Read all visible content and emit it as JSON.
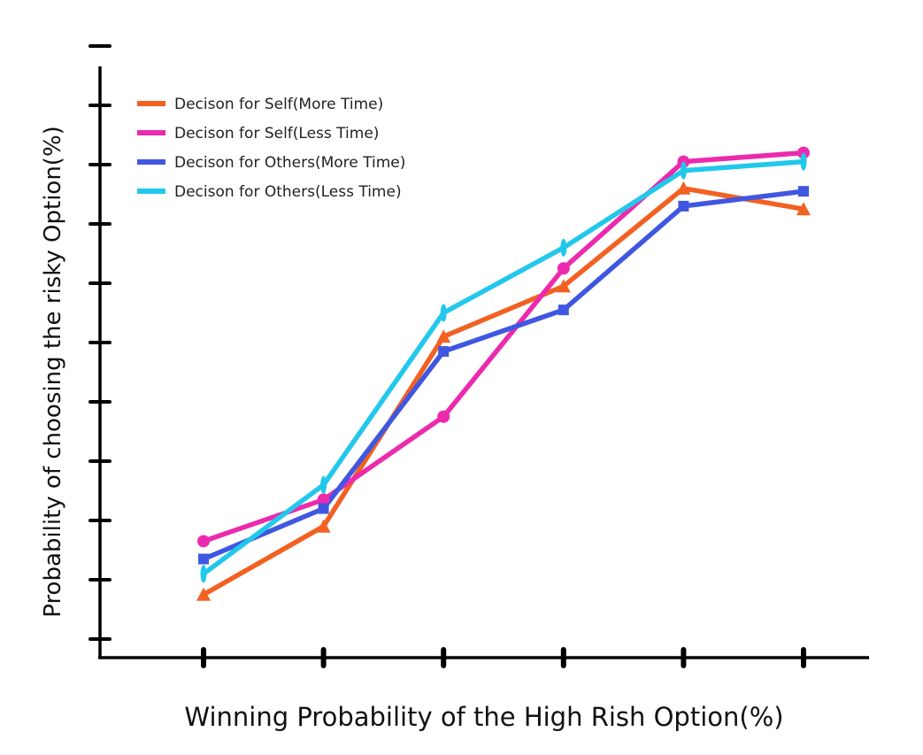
{
  "chart_data": {
    "type": "line",
    "title": "",
    "xlabel": "Winning Probability of the High Rish Option(%)",
    "ylabel": "Probability of choosing the risky Option(%)",
    "x": [
      1,
      2,
      3,
      4,
      5,
      6
    ],
    "ylim": [
      0,
      10
    ],
    "grid": false,
    "legend_position": "top-left",
    "series": [
      {
        "name": "Decison for Self(More Time)",
        "color": "#F26122",
        "marker": "triangle",
        "values": [
          0.75,
          1.9,
          5.1,
          5.95,
          7.6,
          7.25
        ]
      },
      {
        "name": "Decison for Self(Less Time)",
        "color": "#EC2AAE",
        "marker": "circle",
        "values": [
          1.65,
          2.35,
          3.75,
          6.25,
          8.05,
          8.2
        ]
      },
      {
        "name": "Decison for Others(More Time)",
        "color": "#3F57E0",
        "marker": "square",
        "values": [
          1.35,
          2.2,
          4.85,
          5.55,
          7.3,
          7.55
        ]
      },
      {
        "name": "Decison for Others(Less Time)",
        "color": "#22C8EB",
        "marker": "ellipse",
        "values": [
          1.1,
          2.6,
          5.5,
          6.6,
          7.9,
          8.05
        ]
      }
    ]
  }
}
